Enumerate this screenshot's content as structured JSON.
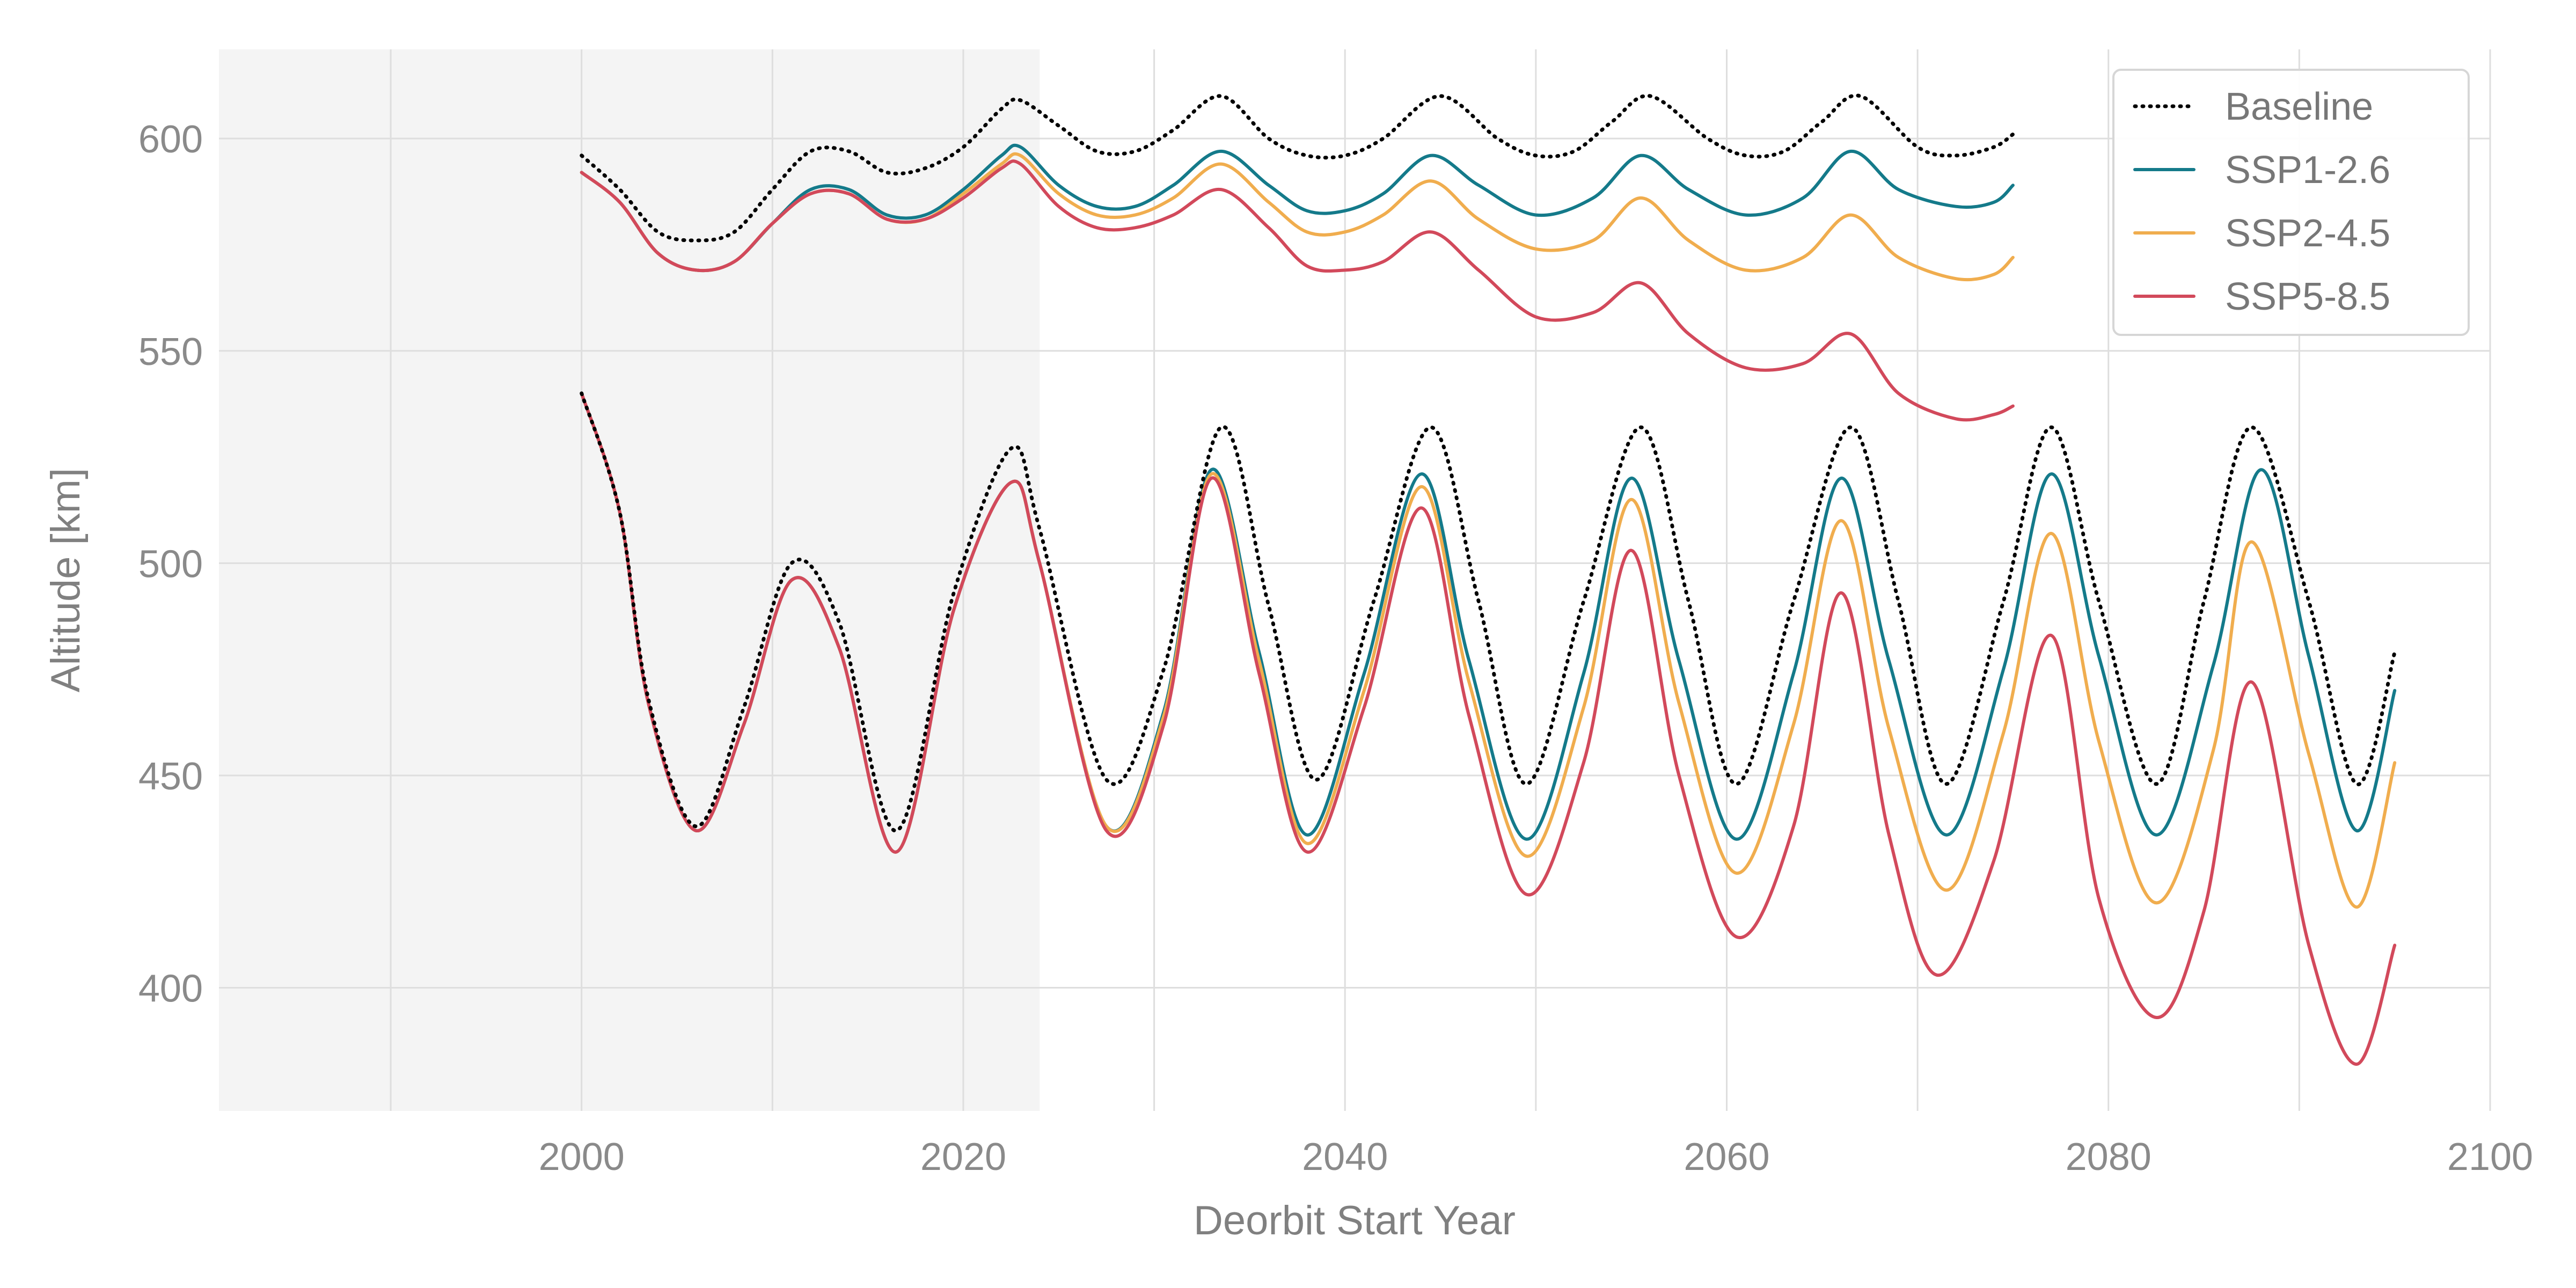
{
  "chart_data": {
    "type": "line",
    "title": "",
    "xlabel": "Deorbit Start Year",
    "ylabel": "Altitude [km]",
    "xlim": [
      1981,
      2100
    ],
    "ylim": [
      371,
      621
    ],
    "x_ticks": [
      2000,
      2020,
      2040,
      2060,
      2080,
      2100
    ],
    "y_ticks": [
      400,
      450,
      500,
      550,
      600
    ],
    "grid": true,
    "shaded_region": {
      "x_start": 1981,
      "x_end": 2024,
      "color": "#f4f4f4"
    },
    "legend_position": "top-right",
    "series": [
      {
        "name": "Baseline",
        "group": "upper",
        "color": "#000000",
        "dash": "dotted",
        "x": [
          2000,
          2002,
          2004,
          2006,
          2008,
          2010,
          2012,
          2014,
          2016,
          2018,
          2020,
          2022,
          2023,
          2025,
          2027,
          2029,
          2031,
          2033.5,
          2036,
          2038,
          2040,
          2042,
          2045,
          2048,
          2050,
          2052,
          2054,
          2056,
          2059,
          2061,
          2063,
          2065,
          2067,
          2070,
          2072,
          2074,
          2075
        ],
        "y": [
          596,
          588,
          578,
          576,
          578,
          588,
          597,
          597,
          592,
          593,
          598,
          607,
          609,
          603,
          597,
          597,
          602,
          610,
          600,
          596,
          596,
          600,
          610,
          600,
          596,
          597,
          604,
          610,
          600,
          596,
          597,
          604,
          610,
          598,
          596,
          598,
          601
        ]
      },
      {
        "name": "SSP1-2.6",
        "group": "upper",
        "color": "#147a8a",
        "dash": "solid",
        "x": [
          2000,
          2002,
          2004,
          2006,
          2008,
          2010,
          2012,
          2014,
          2016,
          2018,
          2020,
          2022,
          2023,
          2025,
          2027,
          2029,
          2031,
          2033.5,
          2036,
          2038,
          2040,
          2042,
          2044.5,
          2047,
          2050,
          2053,
          2055.5,
          2058,
          2061,
          2064,
          2066.5,
          2069,
          2072,
          2074,
          2075
        ],
        "y": [
          592,
          585,
          573,
          569,
          571,
          580,
          588,
          588,
          582,
          582,
          588,
          596,
          598,
          589,
          584,
          584,
          589,
          597,
          589,
          583,
          583,
          587,
          596,
          589,
          582,
          586,
          596,
          588,
          582,
          586,
          597,
          588,
          584,
          585,
          589
        ]
      },
      {
        "name": "SSP2-4.5",
        "group": "upper",
        "color": "#f0ad4e",
        "dash": "solid",
        "x": [
          2000,
          2002,
          2004,
          2006,
          2008,
          2010,
          2012,
          2014,
          2016,
          2018,
          2020,
          2022,
          2023,
          2025,
          2027,
          2029,
          2031,
          2033.5,
          2036,
          2038,
          2040,
          2042,
          2044.5,
          2047,
          2050,
          2053,
          2055.5,
          2058,
          2061,
          2064,
          2066.5,
          2069,
          2072,
          2074,
          2075
        ],
        "y": [
          592,
          585,
          573,
          569,
          571,
          580,
          587,
          587,
          581,
          581,
          587,
          594,
          596,
          587,
          582,
          582,
          586,
          594,
          585,
          578,
          578,
          582,
          590,
          581,
          574,
          576,
          586,
          576,
          569,
          572,
          582,
          572,
          567,
          568,
          572
        ]
      },
      {
        "name": "SSP5-8.5",
        "group": "upper",
        "color": "#d2495b",
        "dash": "solid",
        "x": [
          2000,
          2002,
          2004,
          2006,
          2008,
          2010,
          2012,
          2014,
          2016,
          2018,
          2020,
          2022,
          2023,
          2025,
          2027,
          2029,
          2031,
          2033.5,
          2036,
          2038,
          2040,
          2042,
          2044.5,
          2047,
          2050,
          2053,
          2055.5,
          2058,
          2061,
          2064,
          2066.5,
          2069,
          2072,
          2074,
          2075
        ],
        "y": [
          592,
          585,
          573,
          569,
          571,
          580,
          587,
          587,
          581,
          581,
          586,
          593,
          594,
          584,
          579,
          579,
          582,
          588,
          579,
          570,
          569,
          571,
          578,
          569,
          558,
          559,
          566,
          554,
          546,
          547,
          554,
          540,
          534,
          535,
          537
        ]
      },
      {
        "name": "Baseline",
        "group": "lower",
        "color": "#000000",
        "dash": "dotted",
        "x": [
          2000,
          2002,
          2003.5,
          2006,
          2008.5,
          2011,
          2013.5,
          2016.5,
          2019.5,
          2022.5,
          2024,
          2027.5,
          2030.5,
          2033.5,
          2036,
          2038.5,
          2041.5,
          2044.5,
          2047,
          2049.5,
          2052.5,
          2055.5,
          2058,
          2060.5,
          2063.5,
          2066.5,
          2069,
          2071.5,
          2074.5,
          2077,
          2079.5,
          2082.5,
          2085,
          2087.5,
          2090.5,
          2093,
          2095
        ],
        "y": [
          540,
          512,
          468,
          438,
          466,
          500,
          486,
          437,
          493,
          527,
          508,
          449,
          475,
          532,
          490,
          449,
          491,
          532,
          491,
          448,
          491,
          532,
          491,
          448,
          491,
          532,
          491,
          448,
          491,
          532,
          491,
          448,
          491,
          532,
          491,
          448,
          479
        ]
      },
      {
        "name": "SSP1-2.6",
        "group": "lower",
        "color": "#147a8a",
        "dash": "solid",
        "x": [
          2000,
          2002,
          2003.5,
          2006,
          2008.5,
          2011,
          2013.5,
          2016.5,
          2019.5,
          2022.5,
          2024,
          2027.5,
          2030.5,
          2033,
          2035.5,
          2038,
          2041,
          2044,
          2046.5,
          2049.5,
          2052.5,
          2055,
          2057.5,
          2060.5,
          2063.5,
          2066,
          2068.5,
          2071.5,
          2074.5,
          2077,
          2079.5,
          2082.5,
          2085.5,
          2088,
          2090.5,
          2093,
          2095
        ],
        "y": [
          540,
          512,
          467,
          437,
          462,
          496,
          480,
          432,
          489,
          519,
          500,
          438,
          465,
          522,
          479,
          436,
          474,
          521,
          477,
          435,
          474,
          520,
          477,
          435,
          474,
          520,
          477,
          436,
          475,
          521,
          478,
          436,
          476,
          522,
          478,
          437,
          470
        ]
      },
      {
        "name": "SSP2-4.5",
        "group": "lower",
        "color": "#f0ad4e",
        "dash": "solid",
        "x": [
          2000,
          2002,
          2003.5,
          2006,
          2008.5,
          2011,
          2013.5,
          2016.5,
          2019.5,
          2022.5,
          2024,
          2027.5,
          2030.5,
          2033,
          2035.5,
          2038,
          2041,
          2044,
          2046.5,
          2049.5,
          2052.5,
          2055,
          2057.5,
          2060.5,
          2063.5,
          2066,
          2068.5,
          2071.5,
          2074.5,
          2077,
          2079.5,
          2082.5,
          2085.5,
          2087.5,
          2090.5,
          2093,
          2095
        ],
        "y": [
          540,
          512,
          467,
          437,
          462,
          496,
          480,
          432,
          489,
          519,
          500,
          438,
          464,
          521,
          477,
          434,
          470,
          518,
          472,
          431,
          466,
          515,
          467,
          427,
          462,
          510,
          461,
          423,
          460,
          507,
          458,
          420,
          456,
          505,
          455,
          419,
          453
        ]
      },
      {
        "name": "SSP5-8.5",
        "group": "lower",
        "color": "#d2495b",
        "dash": "solid",
        "x": [
          2000,
          2002,
          2003.5,
          2006,
          2008.5,
          2011,
          2013.5,
          2016.5,
          2019.5,
          2022.5,
          2024,
          2027.5,
          2030.5,
          2033,
          2035.5,
          2038,
          2041,
          2044,
          2046.5,
          2049.5,
          2052.5,
          2055,
          2057.5,
          2060.5,
          2063.5,
          2066,
          2068.5,
          2071,
          2074,
          2077,
          2079.5,
          2082.5,
          2085,
          2087.5,
          2090.5,
          2093,
          2095
        ],
        "y": [
          540,
          512,
          467,
          437,
          462,
          496,
          480,
          432,
          489,
          519,
          500,
          437,
          462,
          520,
          474,
          432,
          466,
          513,
          464,
          422,
          453,
          503,
          450,
          412,
          438,
          493,
          436,
          403,
          430,
          483,
          421,
          393,
          418,
          472,
          410,
          382,
          410
        ]
      }
    ],
    "legend": [
      {
        "label": "Baseline",
        "color": "#000000",
        "dash": "dotted"
      },
      {
        "label": "SSP1-2.6",
        "color": "#147a8a",
        "dash": "solid"
      },
      {
        "label": "SSP2-4.5",
        "color": "#f0ad4e",
        "dash": "solid"
      },
      {
        "label": "SSP5-8.5",
        "color": "#d2495b",
        "dash": "solid"
      }
    ]
  }
}
